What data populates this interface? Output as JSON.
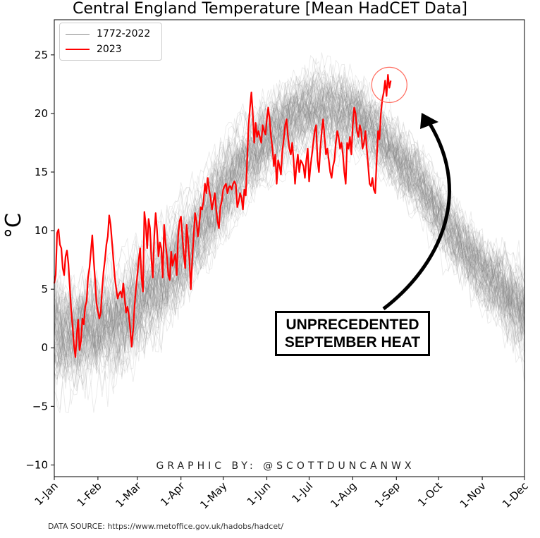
{
  "chart_data": {
    "type": "line",
    "title": "Central England Temperature [Mean HadCET Data]",
    "xlabel": "",
    "ylabel": "°C",
    "xlim_day": [
      0,
      334
    ],
    "ylim": [
      -11,
      28
    ],
    "x_tick_labels": [
      "1-Jan",
      "1-Feb",
      "1-Mar",
      "1-Apr",
      "1-May",
      "1-Jun",
      "1-Jul",
      "1-Aug",
      "1-Sep",
      "1-Oct",
      "1-Nov",
      "1-Dec"
    ],
    "y_ticks": [
      -10,
      -5,
      0,
      5,
      10,
      15,
      20,
      25
    ],
    "grid": false,
    "legend_position": "top-left",
    "series": [
      {
        "name": "1772-2022",
        "color": "#808080",
        "description_band": "range of daily mean temperatures across 1772-2022",
        "envelope_days": [
          0,
          15,
          31,
          45,
          59,
          75,
          90,
          105,
          120,
          135,
          151,
          166,
          181,
          196,
          212,
          227,
          243,
          258,
          273,
          288,
          304,
          319,
          334
        ],
        "envelope_low": [
          -9,
          -9,
          -9,
          -8,
          -6,
          -4,
          -1,
          2,
          5,
          8,
          10,
          12,
          13,
          13,
          13,
          12,
          10,
          8,
          5,
          2,
          -1,
          -3,
          -6
        ],
        "envelope_high": [
          11,
          11,
          12,
          13,
          14,
          15,
          17,
          19,
          22,
          24,
          26,
          27,
          28,
          28,
          27,
          25,
          23,
          21,
          18,
          16,
          14,
          13,
          12
        ]
      },
      {
        "name": "2023",
        "color": "#ff0000",
        "values": [
          5.5,
          6.2,
          9.8,
          10.1,
          8.8,
          8.5,
          6.8,
          6.2,
          7.8,
          8.3,
          7.2,
          5.2,
          3.2,
          1.8,
          0.2,
          -0.8,
          1.2,
          2.4,
          -0.2,
          0.6,
          2.5,
          2.0,
          3.5,
          4.0,
          6.0,
          6.8,
          8.2,
          9.6,
          7.5,
          5.8,
          3.8,
          3.1,
          2.5,
          3.0,
          5.0,
          6.5,
          7.5,
          8.8,
          9.5,
          11.3,
          10.5,
          9.0,
          7.5,
          6.0,
          5.0,
          4.2,
          4.6,
          4.8,
          4.3,
          5.5,
          4.2,
          3.0,
          3.5,
          2.8,
          1.5,
          0.1,
          1.5,
          3.5,
          5.0,
          6.2,
          7.5,
          8.5,
          6.0,
          4.8,
          11.6,
          10.5,
          8.5,
          11.0,
          10.2,
          7.5,
          6.0,
          9.5,
          11.5,
          10.0,
          7.8,
          9.0,
          8.5,
          6.0,
          10.5,
          9.0,
          7.8,
          6.2,
          5.8,
          8.2,
          7.0,
          7.5,
          8.0,
          6.2,
          9.5,
          10.8,
          11.2,
          9.5,
          8.0,
          6.8,
          10.5,
          9.2,
          7.5,
          5.0,
          7.5,
          9.5,
          11.5,
          10.8,
          9.5,
          10.5,
          12.0,
          11.8,
          12.5,
          14.0,
          13.2,
          14.5,
          13.5,
          12.8,
          11.8,
          12.5,
          13.2,
          11.8,
          10.8,
          10.2,
          12.0,
          12.5,
          13.5,
          13.8,
          14.0,
          13.2,
          13.7,
          13.8,
          13.5,
          14.0,
          14.2,
          13.9,
          12.0,
          12.5,
          13.2,
          12.8,
          11.8,
          13.5,
          13.0,
          16.0,
          19.0,
          20.5,
          21.8,
          20.0,
          17.5,
          19.2,
          18.0,
          18.5,
          18.0,
          17.5,
          19.0,
          18.5,
          18.2,
          19.5,
          20.5,
          19.5,
          18.0,
          17.0,
          15.5,
          16.5,
          14.0,
          16.0,
          15.5,
          14.8,
          16.8,
          17.8,
          19.0,
          19.5,
          18.0,
          17.0,
          16.5,
          17.5,
          16.0,
          14.0,
          15.5,
          16.5,
          15.0,
          16.0,
          15.8,
          15.5,
          14.5,
          16.0,
          17.0,
          14.2,
          15.5,
          16.5,
          17.5,
          18.5,
          19.0,
          16.0,
          15.0,
          17.0,
          18.5,
          19.5,
          18.0,
          16.5,
          17.0,
          16.0,
          15.0,
          14.5,
          15.5,
          16.0,
          17.5,
          18.5,
          18.0,
          17.0,
          17.5,
          16.5,
          15.0,
          14.0,
          17.5,
          17.0,
          18.0,
          16.5,
          19.0,
          20.5,
          20.0,
          18.5,
          18.0,
          19.0,
          18.5,
          17.0,
          17.5,
          18.5,
          17.0,
          15.5,
          14.0,
          13.8,
          14.5,
          13.5,
          13.2,
          16.0,
          18.5,
          17.8,
          20.0,
          21.2,
          21.8,
          22.8,
          21.5,
          23.3,
          22.2,
          22.8
        ]
      }
    ],
    "annotations": {
      "box_text": [
        "UNPRECEDENTED",
        "SEPTEMBER HEAT"
      ],
      "credit": "GRAPHIC BY: @SCOTTDUNCANWX"
    }
  },
  "footer": {
    "source": "DATA SOURCE: https://www.metoffice.gov.uk/hadobs/hadcet/"
  }
}
